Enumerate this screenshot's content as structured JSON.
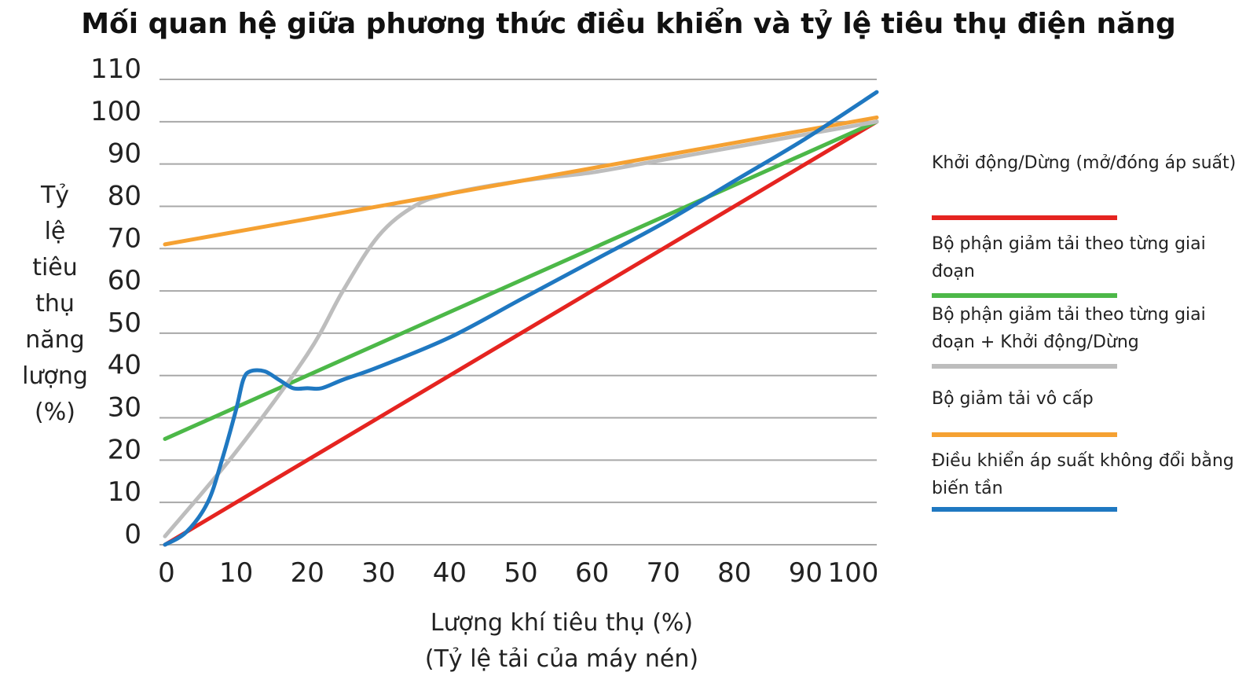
{
  "chart_data": {
    "type": "line",
    "title": "Mối quan hệ giữa phương thức điều khiển và tỷ lệ tiêu thụ điện năng",
    "xlabel_lines": [
      "Lượng khí tiêu thụ (%)",
      "(Tỷ lệ tải của máy nén)"
    ],
    "ylabel_lines": [
      "Tỷ",
      "lệ",
      "tiêu",
      "thụ",
      "năng",
      "lượng",
      "(%)"
    ],
    "xlim": [
      0,
      100
    ],
    "ylim": [
      0,
      110
    ],
    "x_ticks": [
      "0",
      "10",
      "20",
      "30",
      "40",
      "50",
      "60",
      "70",
      "80",
      "90",
      "100"
    ],
    "y_ticks": [
      "0",
      "10",
      "20",
      "30",
      "40",
      "50",
      "60",
      "70",
      "80",
      "90",
      "100",
      "110"
    ],
    "grid": true,
    "legend_position": "right",
    "series": [
      {
        "name": "Khởi động/Dừng (mở/đóng áp suất)",
        "color": "#e52420",
        "x": [
          0,
          100
        ],
        "y": [
          0,
          100
        ]
      },
      {
        "name": "Bộ phận giảm tải theo từng giai đoạn",
        "color": "#4cb848",
        "x": [
          0,
          100
        ],
        "y": [
          25,
          100
        ]
      },
      {
        "name": "Bộ phận giảm tải theo từng giai đoạn + Khởi động/Dừng",
        "color": "#bdbdbd",
        "x": [
          0,
          10,
          20,
          25,
          30,
          35,
          40,
          50,
          60,
          70,
          80,
          90,
          100
        ],
        "y": [
          2,
          22,
          45,
          60,
          73,
          80,
          83,
          86,
          88,
          91,
          94,
          97,
          100
        ]
      },
      {
        "name": "Bộ giảm tải vô cấp",
        "color": "#f5a132",
        "x": [
          0,
          100
        ],
        "y": [
          71,
          101
        ]
      },
      {
        "name": "Điều khiển áp suất không đổi bằng biến tần",
        "color": "#1f78c1",
        "x": [
          0,
          3,
          6,
          8,
          10,
          11,
          12,
          14,
          16,
          18,
          20,
          22,
          25,
          30,
          40,
          50,
          60,
          70,
          80,
          90,
          100
        ],
        "y": [
          0,
          3,
          10,
          20,
          32,
          39,
          41,
          41,
          39,
          37,
          37,
          37,
          39,
          42,
          49,
          58,
          67,
          76,
          86,
          96,
          107
        ]
      }
    ]
  }
}
